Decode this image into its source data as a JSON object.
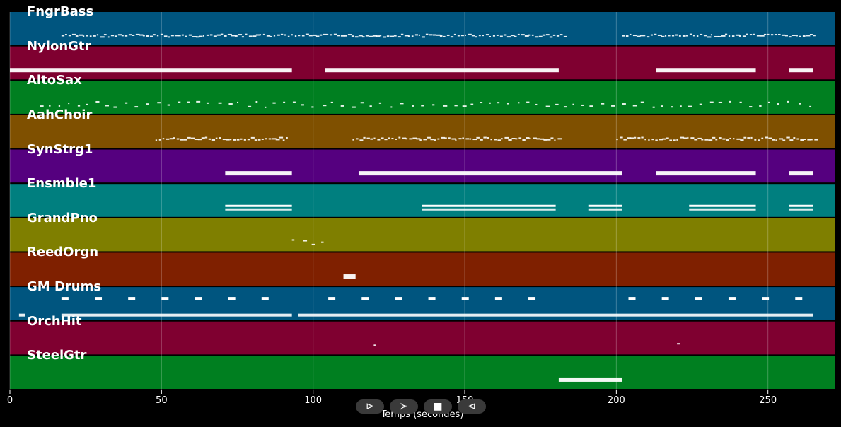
{
  "chart_data": {
    "type": "piano-roll",
    "x_axis": {
      "label": "Temps (secondes)",
      "range": [
        0,
        272
      ],
      "ticks": [
        0,
        50,
        100,
        150,
        200,
        250
      ]
    },
    "grid": true,
    "tracks": [
      {
        "name": "FngrBass",
        "color": "#00557f",
        "segments": [
          [
            17,
            183
          ],
          [
            202,
            265
          ]
        ],
        "style": "dense"
      },
      {
        "name": "NylonGtr",
        "color": "#7f0030",
        "segments": [
          [
            0,
            93
          ],
          [
            104,
            181
          ],
          [
            213,
            246
          ],
          [
            257,
            265
          ]
        ],
        "style": "thick"
      },
      {
        "name": "AltoSax",
        "color": "#007f20",
        "segments": [
          [
            10,
            266
          ]
        ],
        "style": "sparse"
      },
      {
        "name": "AahChoir",
        "color": "#7f5000",
        "segments": [
          [
            48,
            92
          ],
          [
            113,
            181
          ],
          [
            200,
            266
          ]
        ],
        "style": "dense"
      },
      {
        "name": "SynStrg1",
        "color": "#55007f",
        "segments": [
          [
            71,
            93
          ],
          [
            115,
            202
          ],
          [
            213,
            246
          ],
          [
            257,
            265
          ]
        ],
        "style": "thick"
      },
      {
        "name": "Ensmble1",
        "color": "#007f7f",
        "segments": [
          [
            71,
            93
          ],
          [
            136,
            180
          ],
          [
            191,
            202
          ],
          [
            224,
            246
          ],
          [
            257,
            265
          ]
        ],
        "style": "double"
      },
      {
        "name": "GrandPno",
        "color": "#7f7f00",
        "segments": [
          [
            93,
            104
          ]
        ],
        "style": "sparse"
      },
      {
        "name": "ReedOrgn",
        "color": "#7f2000",
        "segments": [
          [
            110,
            114
          ]
        ],
        "style": "thick"
      },
      {
        "name": "GM Drums",
        "color": "#00557f",
        "segments": [
          [
            3,
            5
          ],
          [
            17,
            93
          ],
          [
            95,
            265
          ]
        ],
        "style": "drums"
      },
      {
        "name": "OrchHit",
        "color": "#7f0030",
        "segments": [
          [
            120,
            121
          ],
          [
            220,
            221
          ]
        ],
        "style": "sparse"
      },
      {
        "name": "SteelGtr",
        "color": "#007f20",
        "segments": [
          [
            181,
            202
          ]
        ],
        "style": "thick"
      }
    ]
  },
  "controls": {
    "play": "⊳",
    "forward": "≻",
    "stop": "■",
    "back": "⊲"
  }
}
